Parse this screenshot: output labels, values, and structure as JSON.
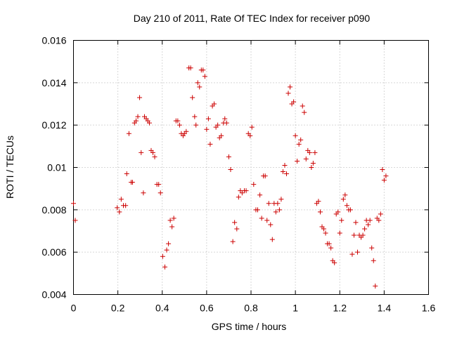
{
  "chart_data": {
    "type": "scatter",
    "title": "Day 210 of 2011, Rate Of TEC Index for receiver p090",
    "xlabel": "GPS time / hours",
    "ylabel": "ROTI / TECUs",
    "xlim": [
      0,
      1.6
    ],
    "ylim": [
      0.004,
      0.016
    ],
    "xticks": [
      "0",
      "0.2",
      "0.4",
      "0.6",
      "0.8",
      "1",
      "1.2",
      "1.4",
      "1.6"
    ],
    "yticks": [
      "0.004",
      "0.006",
      "0.008",
      "0.01",
      "0.012",
      "0.014",
      "0.016"
    ],
    "xtick_values": [
      0,
      0.2,
      0.4,
      0.6,
      0.8,
      1.0,
      1.2,
      1.4,
      1.6
    ],
    "ytick_values": [
      0.004,
      0.006,
      0.008,
      0.01,
      0.012,
      0.014,
      0.016
    ],
    "grid": true,
    "marker": "+",
    "color": "#cc0000",
    "series": [
      {
        "name": "ROTI",
        "points": [
          [
            0.0,
            0.0083
          ],
          [
            0.008,
            0.0075
          ],
          [
            0.197,
            0.0081
          ],
          [
            0.207,
            0.0079
          ],
          [
            0.215,
            0.0085
          ],
          [
            0.225,
            0.0082
          ],
          [
            0.235,
            0.0082
          ],
          [
            0.24,
            0.0097
          ],
          [
            0.25,
            0.0116
          ],
          [
            0.26,
            0.0093
          ],
          [
            0.266,
            0.0093
          ],
          [
            0.275,
            0.0121
          ],
          [
            0.282,
            0.0122
          ],
          [
            0.29,
            0.0124
          ],
          [
            0.298,
            0.0133
          ],
          [
            0.305,
            0.0107
          ],
          [
            0.315,
            0.0088
          ],
          [
            0.32,
            0.0124
          ],
          [
            0.328,
            0.0123
          ],
          [
            0.335,
            0.0122
          ],
          [
            0.342,
            0.0121
          ],
          [
            0.35,
            0.0108
          ],
          [
            0.358,
            0.0107
          ],
          [
            0.366,
            0.0105
          ],
          [
            0.376,
            0.0092
          ],
          [
            0.384,
            0.0092
          ],
          [
            0.392,
            0.0088
          ],
          [
            0.402,
            0.0058
          ],
          [
            0.412,
            0.0053
          ],
          [
            0.42,
            0.0061
          ],
          [
            0.428,
            0.0064
          ],
          [
            0.436,
            0.0075
          ],
          [
            0.444,
            0.0072
          ],
          [
            0.452,
            0.0076
          ],
          [
            0.462,
            0.0122
          ],
          [
            0.47,
            0.0122
          ],
          [
            0.478,
            0.012
          ],
          [
            0.486,
            0.0116
          ],
          [
            0.494,
            0.0115
          ],
          [
            0.5,
            0.0116
          ],
          [
            0.508,
            0.0117
          ],
          [
            0.52,
            0.0147
          ],
          [
            0.528,
            0.0147
          ],
          [
            0.536,
            0.0133
          ],
          [
            0.546,
            0.0124
          ],
          [
            0.552,
            0.012
          ],
          [
            0.56,
            0.014
          ],
          [
            0.568,
            0.0138
          ],
          [
            0.576,
            0.0146
          ],
          [
            0.584,
            0.0146
          ],
          [
            0.592,
            0.0143
          ],
          [
            0.6,
            0.0118
          ],
          [
            0.608,
            0.0123
          ],
          [
            0.616,
            0.0111
          ],
          [
            0.626,
            0.0129
          ],
          [
            0.634,
            0.013
          ],
          [
            0.642,
            0.0119
          ],
          [
            0.65,
            0.012
          ],
          [
            0.658,
            0.0114
          ],
          [
            0.666,
            0.0115
          ],
          [
            0.676,
            0.0121
          ],
          [
            0.682,
            0.0123
          ],
          [
            0.69,
            0.0121
          ],
          [
            0.7,
            0.0105
          ],
          [
            0.708,
            0.0099
          ],
          [
            0.718,
            0.0065
          ],
          [
            0.726,
            0.0074
          ],
          [
            0.736,
            0.0071
          ],
          [
            0.744,
            0.0086
          ],
          [
            0.752,
            0.0089
          ],
          [
            0.76,
            0.0088
          ],
          [
            0.77,
            0.0089
          ],
          [
            0.778,
            0.0089
          ],
          [
            0.788,
            0.0116
          ],
          [
            0.796,
            0.0115
          ],
          [
            0.804,
            0.0119
          ],
          [
            0.812,
            0.0092
          ],
          [
            0.822,
            0.008
          ],
          [
            0.83,
            0.008
          ],
          [
            0.84,
            0.0087
          ],
          [
            0.848,
            0.0076
          ],
          [
            0.856,
            0.0096
          ],
          [
            0.864,
            0.0096
          ],
          [
            0.872,
            0.0075
          ],
          [
            0.88,
            0.0083
          ],
          [
            0.888,
            0.0073
          ],
          [
            0.896,
            0.0066
          ],
          [
            0.904,
            0.0083
          ],
          [
            0.912,
            0.0079
          ],
          [
            0.92,
            0.0083
          ],
          [
            0.928,
            0.008
          ],
          [
            0.936,
            0.0085
          ],
          [
            0.944,
            0.0098
          ],
          [
            0.952,
            0.0101
          ],
          [
            0.96,
            0.0097
          ],
          [
            0.968,
            0.0135
          ],
          [
            0.976,
            0.0138
          ],
          [
            0.984,
            0.013
          ],
          [
            0.992,
            0.0131
          ],
          [
            1.0,
            0.0115
          ],
          [
            1.008,
            0.0103
          ],
          [
            1.016,
            0.0111
          ],
          [
            1.024,
            0.0113
          ],
          [
            1.032,
            0.0129
          ],
          [
            1.04,
            0.0126
          ],
          [
            1.048,
            0.0104
          ],
          [
            1.056,
            0.0108
          ],
          [
            1.064,
            0.0107
          ],
          [
            1.072,
            0.01
          ],
          [
            1.08,
            0.0102
          ],
          [
            1.088,
            0.0107
          ],
          [
            1.096,
            0.0083
          ],
          [
            1.104,
            0.0084
          ],
          [
            1.112,
            0.0079
          ],
          [
            1.12,
            0.0072
          ],
          [
            1.128,
            0.0071
          ],
          [
            1.136,
            0.0069
          ],
          [
            1.144,
            0.0064
          ],
          [
            1.152,
            0.0064
          ],
          [
            1.16,
            0.0062
          ],
          [
            1.168,
            0.0056
          ],
          [
            1.176,
            0.0055
          ],
          [
            1.184,
            0.0078
          ],
          [
            1.192,
            0.0079
          ],
          [
            1.2,
            0.0069
          ],
          [
            1.208,
            0.0075
          ],
          [
            1.216,
            0.0085
          ],
          [
            1.224,
            0.0087
          ],
          [
            1.232,
            0.0082
          ],
          [
            1.24,
            0.008
          ],
          [
            1.248,
            0.008
          ],
          [
            1.256,
            0.0059
          ],
          [
            1.264,
            0.0068
          ],
          [
            1.272,
            0.0074
          ],
          [
            1.28,
            0.006
          ],
          [
            1.288,
            0.0068
          ],
          [
            1.296,
            0.0067
          ],
          [
            1.304,
            0.0068
          ],
          [
            1.312,
            0.0071
          ],
          [
            1.32,
            0.0075
          ],
          [
            1.328,
            0.0073
          ],
          [
            1.336,
            0.0075
          ],
          [
            1.344,
            0.0062
          ],
          [
            1.352,
            0.0056
          ],
          [
            1.36,
            0.0044
          ],
          [
            1.368,
            0.0076
          ],
          [
            1.376,
            0.0075
          ],
          [
            1.384,
            0.0078
          ],
          [
            1.392,
            0.0099
          ],
          [
            1.4,
            0.0094
          ],
          [
            1.408,
            0.0096
          ]
        ]
      }
    ]
  }
}
